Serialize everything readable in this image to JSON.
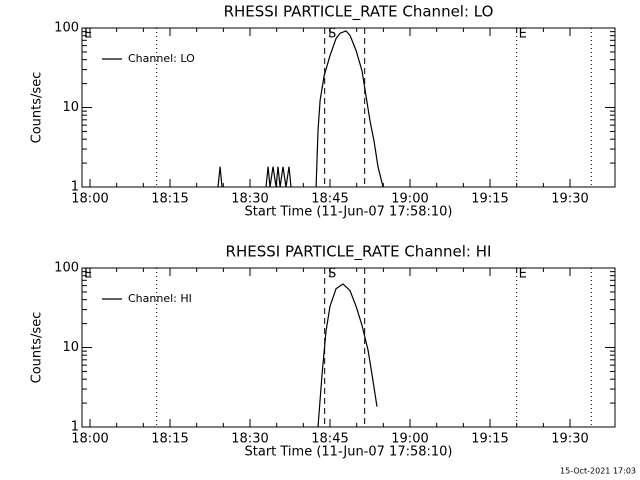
{
  "chart_data": [
    {
      "type": "line",
      "title": "RHESSI PARTICLE_RATE Channel: LO",
      "xlabel": "Start Time (11-Jun-07 17:58:10)",
      "ylabel": "Counts/sec",
      "log_y": true,
      "legend": "upper left",
      "xlim": [
        "17:58:30",
        "19:38:26"
      ],
      "xticks": [
        "18:00",
        "18:15",
        "18:30",
        "18:45",
        "19:00",
        "19:15",
        "19:30"
      ],
      "ylim": [
        1,
        100
      ],
      "yticks": [
        1,
        10,
        100
      ],
      "series": [
        {
          "name": "Channel: LO",
          "color": "#000000",
          "x": [
            "18:24:00",
            "18:24:23",
            "18:24:45",
            null,
            "18:33:00",
            "18:33:23",
            "18:33:45",
            "18:34:19",
            "18:34:53",
            "18:35:15",
            "18:35:38",
            "18:36:11",
            "18:36:45",
            "18:37:19",
            "18:37:41",
            null,
            "18:42:23",
            "18:42:45",
            "18:43:08",
            "18:43:53",
            "18:45:00",
            "18:46:08",
            "18:46:53",
            "18:48:00",
            "18:48:45",
            "18:49:53",
            "18:51:00",
            "18:51:45",
            "18:52:30",
            "18:53:15",
            "18:54:00",
            "18:54:56"
          ],
          "values": [
            1,
            1.8,
            1,
            null,
            1,
            1.8,
            1,
            1.8,
            1,
            1.8,
            1,
            1.8,
            1,
            1.8,
            1,
            null,
            1,
            5.1,
            12.3,
            25,
            45,
            74,
            86,
            92,
            81,
            52,
            29,
            14,
            6.8,
            3.8,
            1.8,
            1
          ]
        }
      ],
      "vlines": [
        {
          "x": "18:12:30",
          "style": "dotted"
        },
        {
          "x": "19:20:00",
          "style": "dotted"
        },
        {
          "x": "19:34:00",
          "style": "dotted"
        },
        {
          "x": "18:44:00",
          "style": "dashed"
        },
        {
          "x": "18:51:30",
          "style": "dashed"
        }
      ],
      "annotations": [
        {
          "text": "E",
          "x": "17:58:30"
        },
        {
          "text": "S",
          "x": "18:44:15"
        },
        {
          "text": "E",
          "x": "19:20:00"
        }
      ]
    },
    {
      "type": "line",
      "title": "RHESSI PARTICLE_RATE Channel: HI",
      "xlabel": "Start Time (11-Jun-07 17:58:10)",
      "ylabel": "Counts/sec",
      "log_y": true,
      "legend": "upper left",
      "xlim": [
        "17:58:30",
        "19:38:26"
      ],
      "xticks": [
        "18:00",
        "18:15",
        "18:30",
        "18:45",
        "19:00",
        "19:15",
        "19:30"
      ],
      "ylim": [
        1,
        100
      ],
      "yticks": [
        1,
        10,
        100
      ],
      "series": [
        {
          "name": "Channel: HI",
          "color": "#000000",
          "x": [
            "18:42:45",
            "18:43:30",
            "18:44:15",
            "18:45:00",
            "18:46:08",
            "18:47:26",
            "18:48:45",
            "18:49:53",
            "18:51:00",
            "18:52:08",
            "18:52:53",
            "18:53:49"
          ],
          "values": [
            1,
            4.5,
            16,
            33,
            55,
            63,
            52,
            33,
            19,
            9.2,
            4.5,
            1.8
          ]
        }
      ],
      "vlines": [
        {
          "x": "18:12:30",
          "style": "dotted"
        },
        {
          "x": "19:20:00",
          "style": "dotted"
        },
        {
          "x": "19:34:00",
          "style": "dotted"
        },
        {
          "x": "18:44:00",
          "style": "dashed"
        },
        {
          "x": "18:51:30",
          "style": "dashed"
        }
      ],
      "annotations": [
        {
          "text": "E",
          "x": "17:58:30"
        },
        {
          "text": "S",
          "x": "18:44:15"
        },
        {
          "text": "E",
          "x": "19:20:00"
        }
      ]
    }
  ],
  "timestamp": "15-Oct-2021 17:03"
}
